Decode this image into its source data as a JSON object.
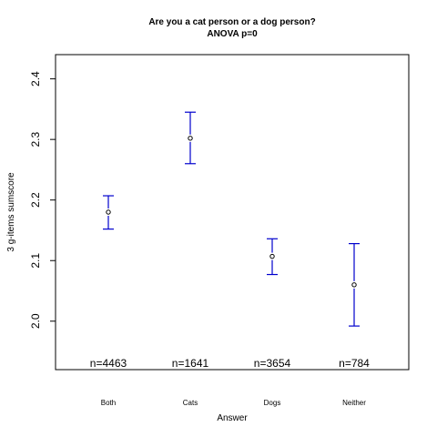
{
  "chart_data": {
    "type": "scatter",
    "title": "Are you a cat person or a dog person?",
    "subtitle": "ANOVA p=0",
    "xlabel": "Answer",
    "ylabel": "3 g-items sumscore",
    "categories": [
      "Both",
      "Cats",
      "Dogs",
      "Neither"
    ],
    "means": [
      2.18,
      2.302,
      2.107,
      2.06
    ],
    "ci_upper": [
      2.207,
      2.345,
      2.136,
      2.128
    ],
    "ci_lower": [
      2.152,
      2.26,
      2.077,
      1.992
    ],
    "n_labels": [
      "n=4463",
      "n=1641",
      "n=3654",
      "n=784"
    ],
    "ylim": [
      1.92,
      2.44
    ],
    "yticks": [
      "2.0",
      "2.1",
      "2.2",
      "2.3",
      "2.4"
    ],
    "ytick_values": [
      2.0,
      2.1,
      2.2,
      2.3,
      2.4
    ],
    "grid": false,
    "errorbar_color": "#0000cd",
    "point_color": "#000000"
  }
}
